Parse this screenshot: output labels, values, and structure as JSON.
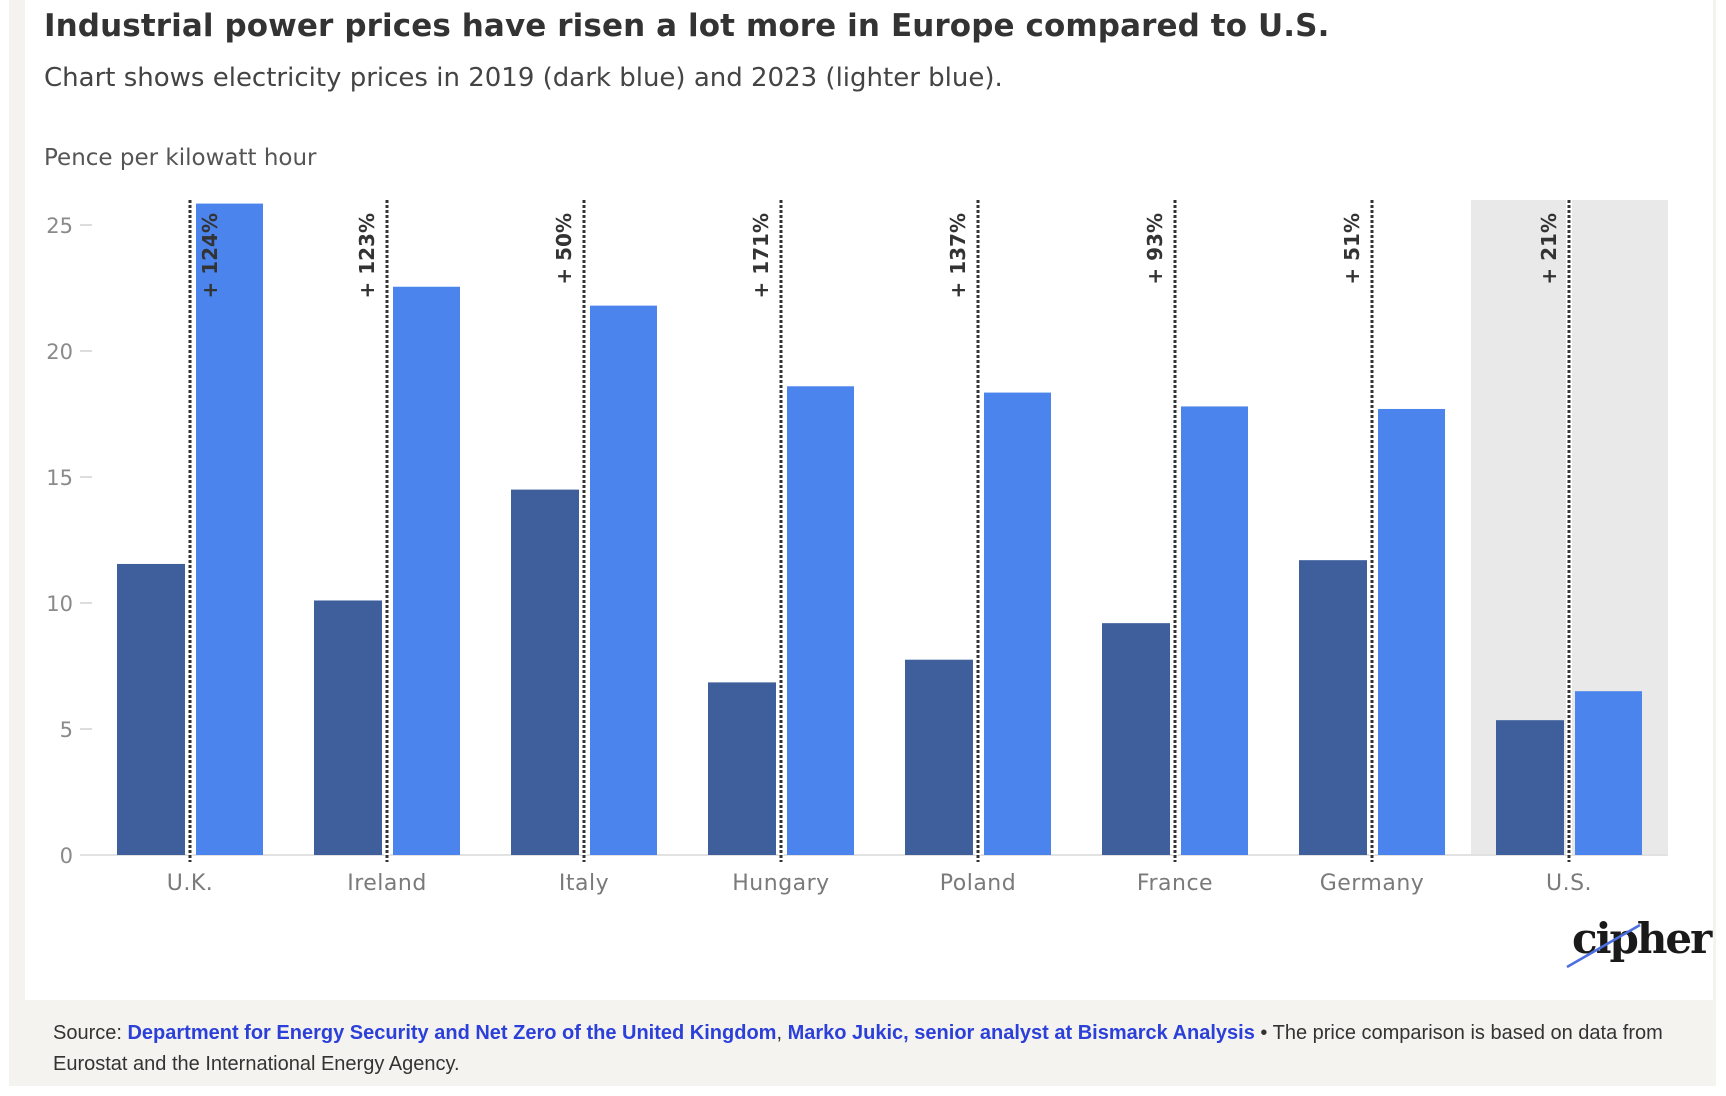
{
  "header": {
    "title": "Industrial power prices have risen a lot more in Europe compared to U.S.",
    "subtitle": "Chart shows electricity prices in 2019 (dark blue) and 2023 (lighter blue)."
  },
  "colors": {
    "series_2019": "#3e5f9c",
    "series_2023": "#4b84ec",
    "highlight_band": "#e9e9e9",
    "link": "#2b3fd9",
    "logo_accent": "#4b6fe0"
  },
  "chart_data": {
    "type": "bar",
    "title": "Industrial power prices have risen a lot more in Europe compared to U.S.",
    "subtitle": "Chart shows electricity prices in 2019 (dark blue) and 2023 (lighter blue).",
    "xlabel": "",
    "ylabel": "Pence per kilowatt hour",
    "ylim": [
      0,
      26
    ],
    "yticks": [
      0,
      5,
      10,
      15,
      20,
      25
    ],
    "grid": false,
    "legend": "none (described in subtitle)",
    "categories": [
      "U.K.",
      "Ireland",
      "Italy",
      "Hungary",
      "Poland",
      "France",
      "Germany",
      "U.S."
    ],
    "series": [
      {
        "name": "2019",
        "values": [
          11.55,
          10.1,
          14.5,
          6.85,
          7.75,
          9.2,
          11.7,
          5.35
        ]
      },
      {
        "name": "2023",
        "values": [
          25.85,
          22.55,
          21.8,
          18.6,
          18.35,
          17.8,
          17.7,
          6.5
        ]
      }
    ],
    "annotations": [
      "+ 124%",
      "+ 123%",
      "+ 50%",
      "+ 171%",
      "+ 137%",
      "+ 93%",
      "+ 51%",
      "+ 21%"
    ],
    "highlighted_category": "U.S."
  },
  "logo": {
    "text": "cipher"
  },
  "footer": {
    "source_prefix": "Source: ",
    "source_link_1": "Department for Energy Security and Net Zero of the United Kingdom",
    "separator": ", ",
    "source_link_2": "Marko Jukic, senior analyst at Bismarck Analysis",
    "note": " • The price comparison is based on data from Eurostat and the International Energy Agency."
  }
}
